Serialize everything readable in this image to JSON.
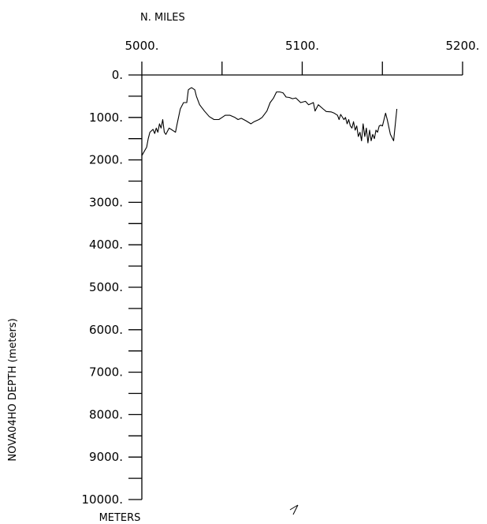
{
  "chart_data": {
    "type": "line",
    "x_axis_title": "N. MILES",
    "y_axis_title": "NOVA04HO DEPTH (meters)",
    "y_unit_label": "METERS",
    "xlim": [
      5000,
      5200
    ],
    "ylim": [
      0,
      10000
    ],
    "y_inverted": true,
    "x_major_ticks": [
      5000,
      5100,
      5200
    ],
    "x_minor_ticks": [
      5050,
      5150
    ],
    "x_tick_labels": [
      "5000.",
      "5100.",
      "5200."
    ],
    "y_major_ticks": [
      0,
      1000,
      2000,
      3000,
      4000,
      5000,
      6000,
      7000,
      8000,
      9000,
      10000
    ],
    "y_minor_ticks": [
      500,
      1500,
      2500,
      3500,
      4500,
      5500,
      6500,
      7500,
      8500,
      9500
    ],
    "y_tick_labels": [
      "0.",
      "1000.",
      "2000.",
      "3000.",
      "4000.",
      "5000.",
      "6000.",
      "7000.",
      "8000.",
      "9000.",
      "10000."
    ],
    "grid": false,
    "series": [
      {
        "x": [
          5000,
          5003,
          5004,
          5005,
          5007,
          5008,
          5009,
          5010,
          5011,
          5012,
          5013,
          5014,
          5015,
          5017,
          5019,
          5021,
          5022,
          5024,
          5026,
          5028,
          5029,
          5030,
          5031,
          5033,
          5034,
          5036,
          5039,
          5042,
          5045,
          5048,
          5050,
          5052,
          5055,
          5058,
          5060,
          5062,
          5065,
          5068,
          5070,
          5073,
          5075,
          5078,
          5080,
          5082,
          5084,
          5086,
          5088,
          5090,
          5092,
          5094,
          5096,
          5099,
          5102,
          5104,
          5107,
          5108,
          5110,
          5113,
          5115,
          5118,
          5120,
          5122,
          5123,
          5124,
          5126,
          5127,
          5128,
          5129,
          5130,
          5131,
          5132,
          5133,
          5134,
          5135,
          5136,
          5137,
          5138,
          5139,
          5140,
          5141,
          5142,
          5143,
          5144,
          5145,
          5146,
          5147,
          5148,
          5149,
          5150,
          5151,
          5152,
          5153,
          5155,
          5157,
          5159
        ],
        "y": [
          1900,
          1700,
          1500,
          1350,
          1280,
          1380,
          1250,
          1350,
          1150,
          1250,
          1050,
          1350,
          1400,
          1250,
          1300,
          1350,
          1150,
          800,
          650,
          650,
          350,
          320,
          300,
          350,
          500,
          700,
          850,
          980,
          1050,
          1050,
          1000,
          950,
          950,
          1000,
          1050,
          1020,
          1080,
          1150,
          1100,
          1050,
          1000,
          850,
          650,
          550,
          400,
          400,
          420,
          520,
          530,
          560,
          540,
          650,
          620,
          700,
          650,
          850,
          700,
          800,
          860,
          870,
          900,
          950,
          1050,
          930,
          1050,
          1000,
          1150,
          1050,
          1200,
          1250,
          1100,
          1300,
          1200,
          1450,
          1350,
          1550,
          1150,
          1450,
          1250,
          1600,
          1300,
          1550,
          1400,
          1500,
          1300,
          1350,
          1200,
          1180,
          1200,
          1050,
          900,
          1050,
          1400,
          1550,
          800
        ]
      }
    ],
    "stray_mark": "small slanted tick below the plot"
  }
}
